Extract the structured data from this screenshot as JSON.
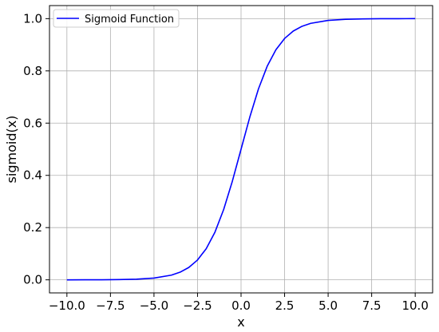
{
  "chart_data": {
    "type": "line",
    "title": "",
    "xlabel": "x",
    "ylabel": "sigmoid(x)",
    "xlim": [
      -11.0,
      11.0
    ],
    "ylim": [
      -0.05,
      1.05
    ],
    "grid": true,
    "legend_position": "top-left",
    "x_ticks": [
      -10.0,
      -7.5,
      -5.0,
      -2.5,
      0.0,
      2.5,
      5.0,
      7.5,
      10.0
    ],
    "x_tick_labels": [
      "−10.0",
      "−7.5",
      "−5.0",
      "−2.5",
      "0.0",
      "2.5",
      "5.0",
      "7.5",
      "10.0"
    ],
    "y_ticks": [
      0.0,
      0.2,
      0.4,
      0.6,
      0.8,
      1.0
    ],
    "y_tick_labels": [
      "0.0",
      "0.2",
      "0.4",
      "0.6",
      "0.8",
      "1.0"
    ],
    "series": [
      {
        "name": "Sigmoid Function",
        "color": "#0000ff",
        "x": [
          -10,
          -9,
          -8,
          -7,
          -6,
          -5,
          -4,
          -3.5,
          -3,
          -2.5,
          -2,
          -1.5,
          -1,
          -0.5,
          0,
          0.5,
          1,
          1.5,
          2,
          2.5,
          3,
          3.5,
          4,
          5,
          6,
          7,
          8,
          9,
          10
        ],
        "y": [
          0.0,
          0.0001,
          0.0003,
          0.0009,
          0.0025,
          0.0067,
          0.018,
          0.0293,
          0.0474,
          0.0759,
          0.1192,
          0.1824,
          0.2689,
          0.3775,
          0.5,
          0.6225,
          0.7311,
          0.8176,
          0.8808,
          0.9241,
          0.9526,
          0.9707,
          0.982,
          0.9933,
          0.9975,
          0.9991,
          0.9997,
          0.9999,
          1.0
        ]
      }
    ]
  },
  "colors": {
    "grid": "#b0b0b0",
    "axes": "#000000",
    "legend_border": "#cccccc"
  }
}
